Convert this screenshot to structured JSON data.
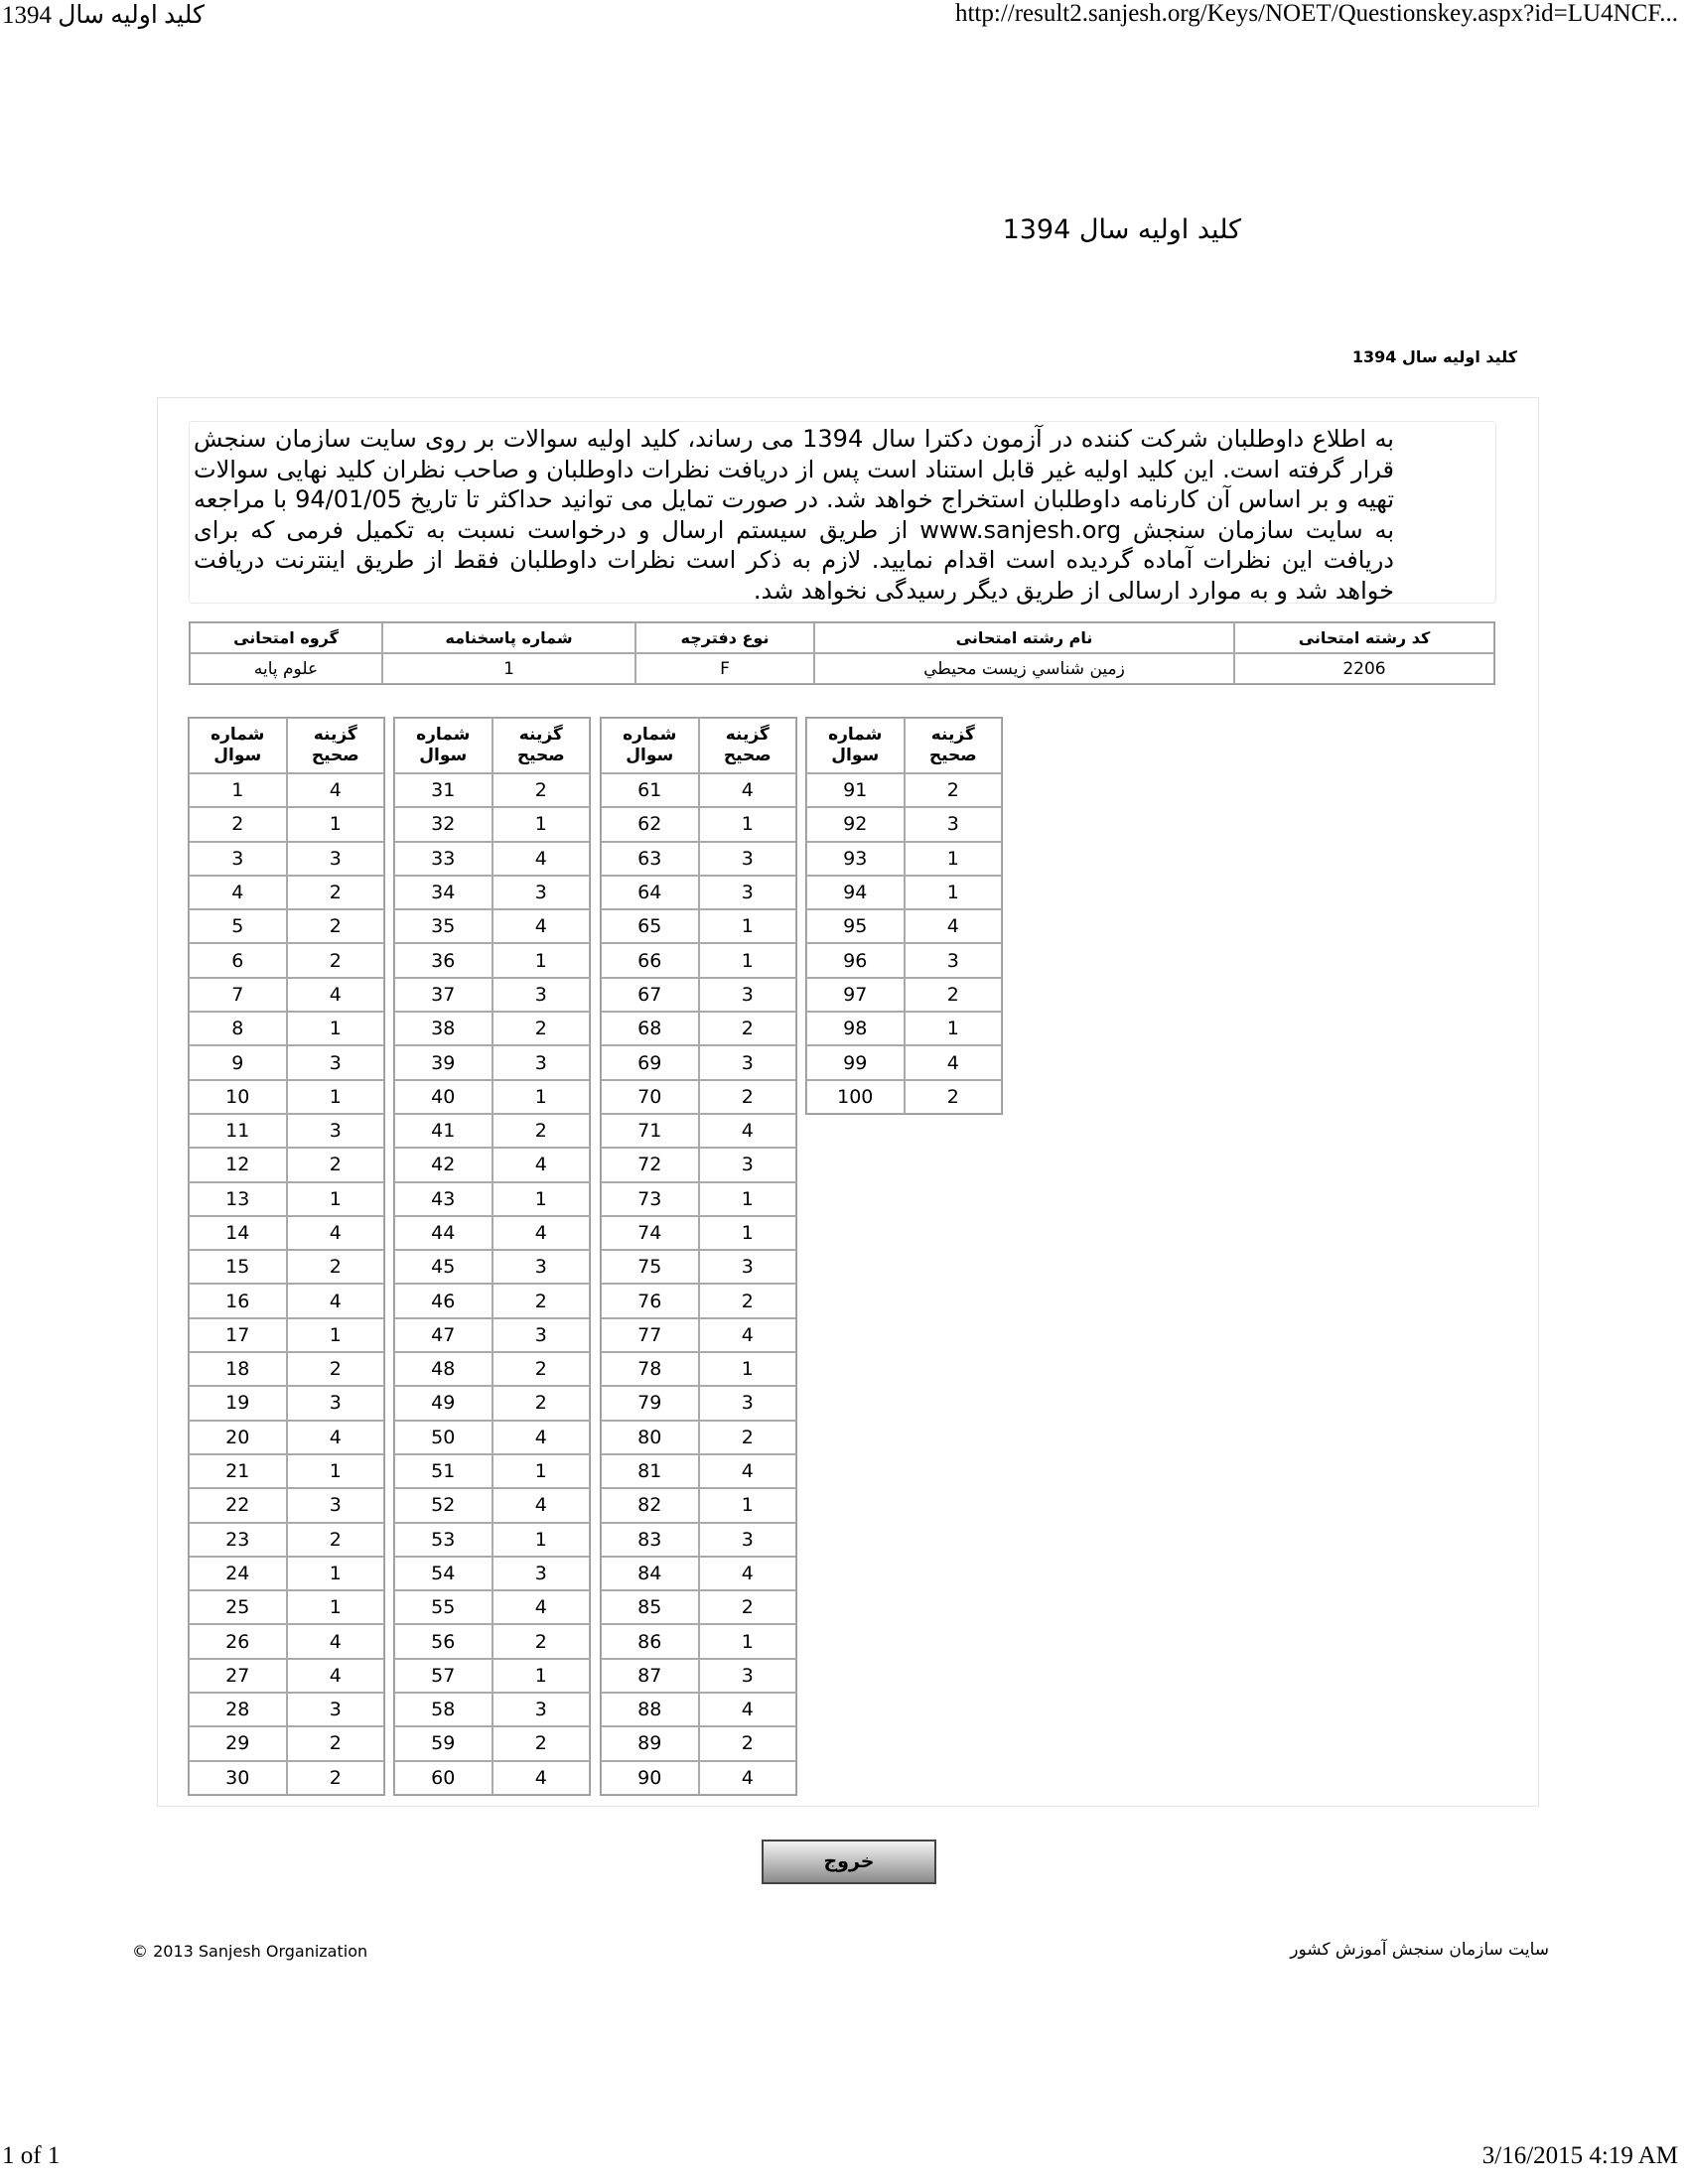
{
  "print_header": {
    "title": "کلید اولیه سال 1394",
    "url": "http://result2.sanjesh.org/Keys/NOET/Questionskey.aspx?id=LU4NCF..."
  },
  "print_footer": {
    "page": "1 of 1",
    "datetime": "3/16/2015 4:19 AM"
  },
  "page_title": "کلید اولیه سال 1394",
  "sub_title": "کلید اولیه سال 1394",
  "notice": "به اطلاع داوطلبان شرکت کننده در آزمون دکترا سال 1394 می رساند، کلید اولیه سوالات بر روی سایت سازمان سنجش قرار گرفته است. این کلید اولیه غیر قابل استناد است پس از دریافت نظرات داوطلبان و صاحب نظران کلید نهایی سوالات تهیه و بر اساس آن کارنامه داوطلبان استخراج خواهد شد. در صورت تمایل می توانید حداکثر تا تاریخ 94/01/05 با مراجعه به سایت سازمان سنجش www.sanjesh.org از طریق  سیستم ارسال و درخواست نسبت به تکمیل فرمی که برای دریافت این نظرات آماده گردیده است اقدام نمایید. لازم به ذکر است نظرات داوطلبان فقط از طریق اینترنت دریافت خواهد شد و به موارد ارسالی از طریق دیگر رسیدگی نخواهد شد.",
  "info_table": {
    "headers": [
      "كد رشته امتحانی",
      "نام رشته امتحانی",
      "نوع دفترچه",
      "شماره پاسخنامه",
      "گروه امتحانی"
    ],
    "values": [
      "2206",
      "زمين شناسي زيست محيطي",
      "F",
      "1",
      "علوم پایه"
    ]
  },
  "answer_headers": {
    "question": "شماره سوال",
    "answer": "گزینه صحیح"
  },
  "answers": [
    4,
    1,
    3,
    2,
    2,
    2,
    4,
    1,
    3,
    1,
    3,
    2,
    1,
    4,
    2,
    4,
    1,
    2,
    3,
    4,
    1,
    3,
    2,
    1,
    1,
    4,
    4,
    3,
    2,
    2,
    2,
    1,
    4,
    3,
    4,
    1,
    3,
    2,
    3,
    1,
    2,
    4,
    1,
    4,
    3,
    2,
    3,
    2,
    2,
    4,
    1,
    4,
    1,
    3,
    4,
    2,
    1,
    3,
    2,
    4,
    4,
    1,
    3,
    3,
    1,
    1,
    3,
    2,
    3,
    2,
    4,
    3,
    1,
    1,
    3,
    2,
    4,
    1,
    3,
    2,
    4,
    1,
    3,
    4,
    2,
    1,
    3,
    4,
    2,
    4,
    2,
    3,
    1,
    1,
    4,
    3,
    2,
    1,
    4,
    2
  ],
  "exit_button": "خروج",
  "footer": {
    "copyright": "© 2013 Sanjesh Organization",
    "site": "سایت سازمان سنجش آموزش کشور"
  }
}
